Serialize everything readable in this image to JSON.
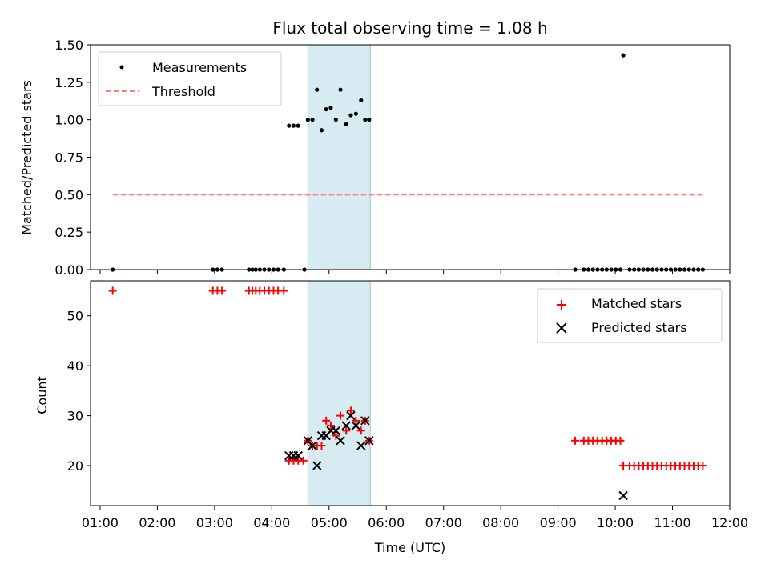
{
  "chart_data": [
    {
      "type": "scatter",
      "title": "Flux total observing time = 1.08 h",
      "xlabel": "",
      "ylabel": "Matched/Predicted stars",
      "xlim": [
        0.833,
        12.0
      ],
      "ylim": [
        0.0,
        1.5
      ],
      "yticks": [
        "0.00",
        "0.25",
        "0.50",
        "0.75",
        "1.00",
        "1.25",
        "1.50"
      ],
      "shaded_span": [
        4.63,
        5.72
      ],
      "legend": [
        "Measurements",
        "Threshold"
      ],
      "legend_position": "top-left",
      "threshold": {
        "name": "Threshold",
        "value": 0.5,
        "x_range": [
          1.22,
          11.52
        ],
        "color": "#ff7f7f"
      },
      "series": [
        {
          "name": "Measurements",
          "marker": "dot",
          "color": "#000000",
          "x": [
            1.22,
            2.97,
            3.05,
            3.13,
            3.6,
            3.66,
            3.72,
            3.79,
            3.87,
            3.95,
            4.03,
            4.11,
            4.21,
            4.57,
            4.3,
            4.38,
            4.46,
            4.63,
            4.71,
            4.79,
            4.87,
            4.95,
            5.03,
            5.12,
            5.2,
            5.3,
            5.38,
            5.47,
            5.56,
            5.63,
            5.7,
            9.3,
            9.45,
            9.53,
            9.61,
            9.69,
            9.77,
            9.85,
            9.93,
            10.01,
            10.09,
            10.14,
            10.25,
            10.33,
            10.41,
            10.49,
            10.57,
            10.65,
            10.73,
            10.81,
            10.89,
            10.97,
            11.05,
            11.13,
            11.21,
            11.29,
            11.37,
            11.45,
            11.53
          ],
          "y": [
            0,
            0,
            0,
            0,
            0,
            0,
            0,
            0,
            0,
            0,
            0,
            0,
            0,
            0,
            0.96,
            0.96,
            0.96,
            1.0,
            1.0,
            1.2,
            0.93,
            1.07,
            1.08,
            1.0,
            1.2,
            0.97,
            1.03,
            1.04,
            1.13,
            1.0,
            1.0,
            0,
            0,
            0,
            0,
            0,
            0,
            0,
            0,
            0,
            0,
            1.43,
            0,
            0,
            0,
            0,
            0,
            0,
            0,
            0,
            0,
            0,
            0,
            0,
            0,
            0,
            0,
            0,
            0
          ]
        }
      ]
    },
    {
      "type": "scatter",
      "title": "",
      "xlabel": "Time (UTC)",
      "ylabel": "Count",
      "xlim": [
        0.833,
        12.0
      ],
      "ylim": [
        12.0,
        57.0
      ],
      "yticks": [
        "20",
        "30",
        "40",
        "50"
      ],
      "xticks": [
        "01:00",
        "02:00",
        "03:00",
        "04:00",
        "05:00",
        "06:00",
        "07:00",
        "08:00",
        "09:00",
        "10:00",
        "11:00",
        "12:00"
      ],
      "shaded_span": [
        4.63,
        5.72
      ],
      "legend": [
        "Matched stars",
        "Predicted stars"
      ],
      "legend_position": "top-right",
      "series": [
        {
          "name": "Matched stars",
          "marker": "plus",
          "color": "#ff0000",
          "x": [
            1.22,
            2.97,
            3.05,
            3.13,
            3.6,
            3.66,
            3.72,
            3.79,
            3.87,
            3.95,
            4.03,
            4.11,
            4.21,
            4.3,
            4.38,
            4.46,
            4.55,
            4.63,
            4.71,
            4.79,
            4.87,
            4.95,
            5.03,
            5.12,
            5.2,
            5.3,
            5.38,
            5.47,
            5.56,
            5.63,
            5.7,
            9.3,
            9.45,
            9.53,
            9.61,
            9.69,
            9.77,
            9.85,
            9.93,
            10.01,
            10.09,
            10.14,
            10.25,
            10.33,
            10.41,
            10.49,
            10.57,
            10.65,
            10.73,
            10.81,
            10.89,
            10.97,
            11.05,
            11.13,
            11.21,
            11.29,
            11.37,
            11.45,
            11.53
          ],
          "y": [
            55,
            55,
            55,
            55,
            55,
            55,
            55,
            55,
            55,
            55,
            55,
            55,
            55,
            21,
            21,
            21,
            21,
            25,
            24,
            24,
            24,
            29,
            28,
            26,
            30,
            27,
            31,
            29,
            27,
            29,
            25,
            25,
            25,
            25,
            25,
            25,
            25,
            25,
            25,
            25,
            25,
            20,
            20,
            20,
            20,
            20,
            20,
            20,
            20,
            20,
            20,
            20,
            20,
            20,
            20,
            20,
            20,
            20,
            20
          ]
        },
        {
          "name": "Predicted stars",
          "marker": "x",
          "color": "#000000",
          "x": [
            4.3,
            4.38,
            4.46,
            4.63,
            4.71,
            4.79,
            4.87,
            4.95,
            5.03,
            5.12,
            5.2,
            5.3,
            5.38,
            5.47,
            5.56,
            5.63,
            5.7,
            10.14
          ],
          "y": [
            22,
            22,
            22,
            25,
            24,
            20,
            26,
            26,
            27,
            27,
            25,
            28,
            30,
            28,
            24,
            29,
            25,
            14
          ]
        }
      ]
    }
  ]
}
